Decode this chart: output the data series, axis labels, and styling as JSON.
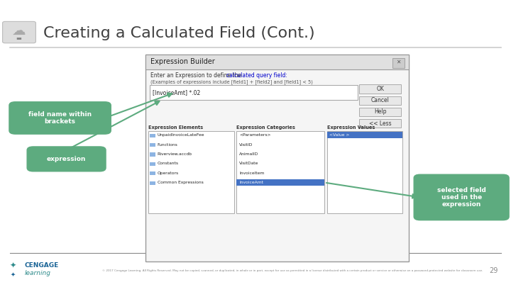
{
  "title": "Creating a Calculated Field (Cont.)",
  "bg_color": "#ffffff",
  "title_color": "#404040",
  "title_fontsize": 16,
  "header_line_color": "#cccccc",
  "dialog_title": "Expression Builder",
  "dialog_bg": "#f5f5f5",
  "dialog_border": "#aaaaaa",
  "label1_text": "field name within\nbrackets",
  "label2_text": "expression",
  "label3_text": "selected field\nused in the\nexpression",
  "callout_bg": "#5dab7f",
  "callout_text_color": "#ffffff",
  "copyright_text": "© 2017 Cengage Learning. All Rights Reserved. May not be copied, scanned, or duplicated, in whole or in part, except for use as permitted in a license distributed with a certain product or service or otherwise on a password-protected website for classroom use.",
  "copyright_color": "#888888",
  "page_number": "29",
  "cengage_blue": "#1a6496",
  "cengage_teal": "#2e8b8b",
  "footer_line_color": "#888888",
  "link_color": "#0000cc",
  "instr1": "Enter an Expression to define the ",
  "instr1_link": "calculated query field:",
  "instr2": "(Examples of expressions include [field1] + [field2] and [field1] < 5)",
  "expr_text": "[InvoiceAmt] *.02",
  "buttons": [
    "OK",
    "Cancel",
    "Help",
    "<< Less"
  ],
  "col_headers": [
    "Expression Elements",
    "Expression Categories",
    "Expression Values"
  ],
  "elements": [
    "UnpaidInvoiceLateFee",
    "Functions",
    "Riverview.accdb",
    "Constants",
    "Operators",
    "Common Expressions"
  ],
  "categories": [
    "<Parameters>",
    "VisitID",
    "AnimalID",
    "VisitDate",
    "InvoiceItem",
    "InvoiceAmt"
  ],
  "values": [
    "<Value >"
  ],
  "highlight_color": "#4472c4",
  "highlight_cat": "InvoiceAmt",
  "highlight_val": "<Value >"
}
